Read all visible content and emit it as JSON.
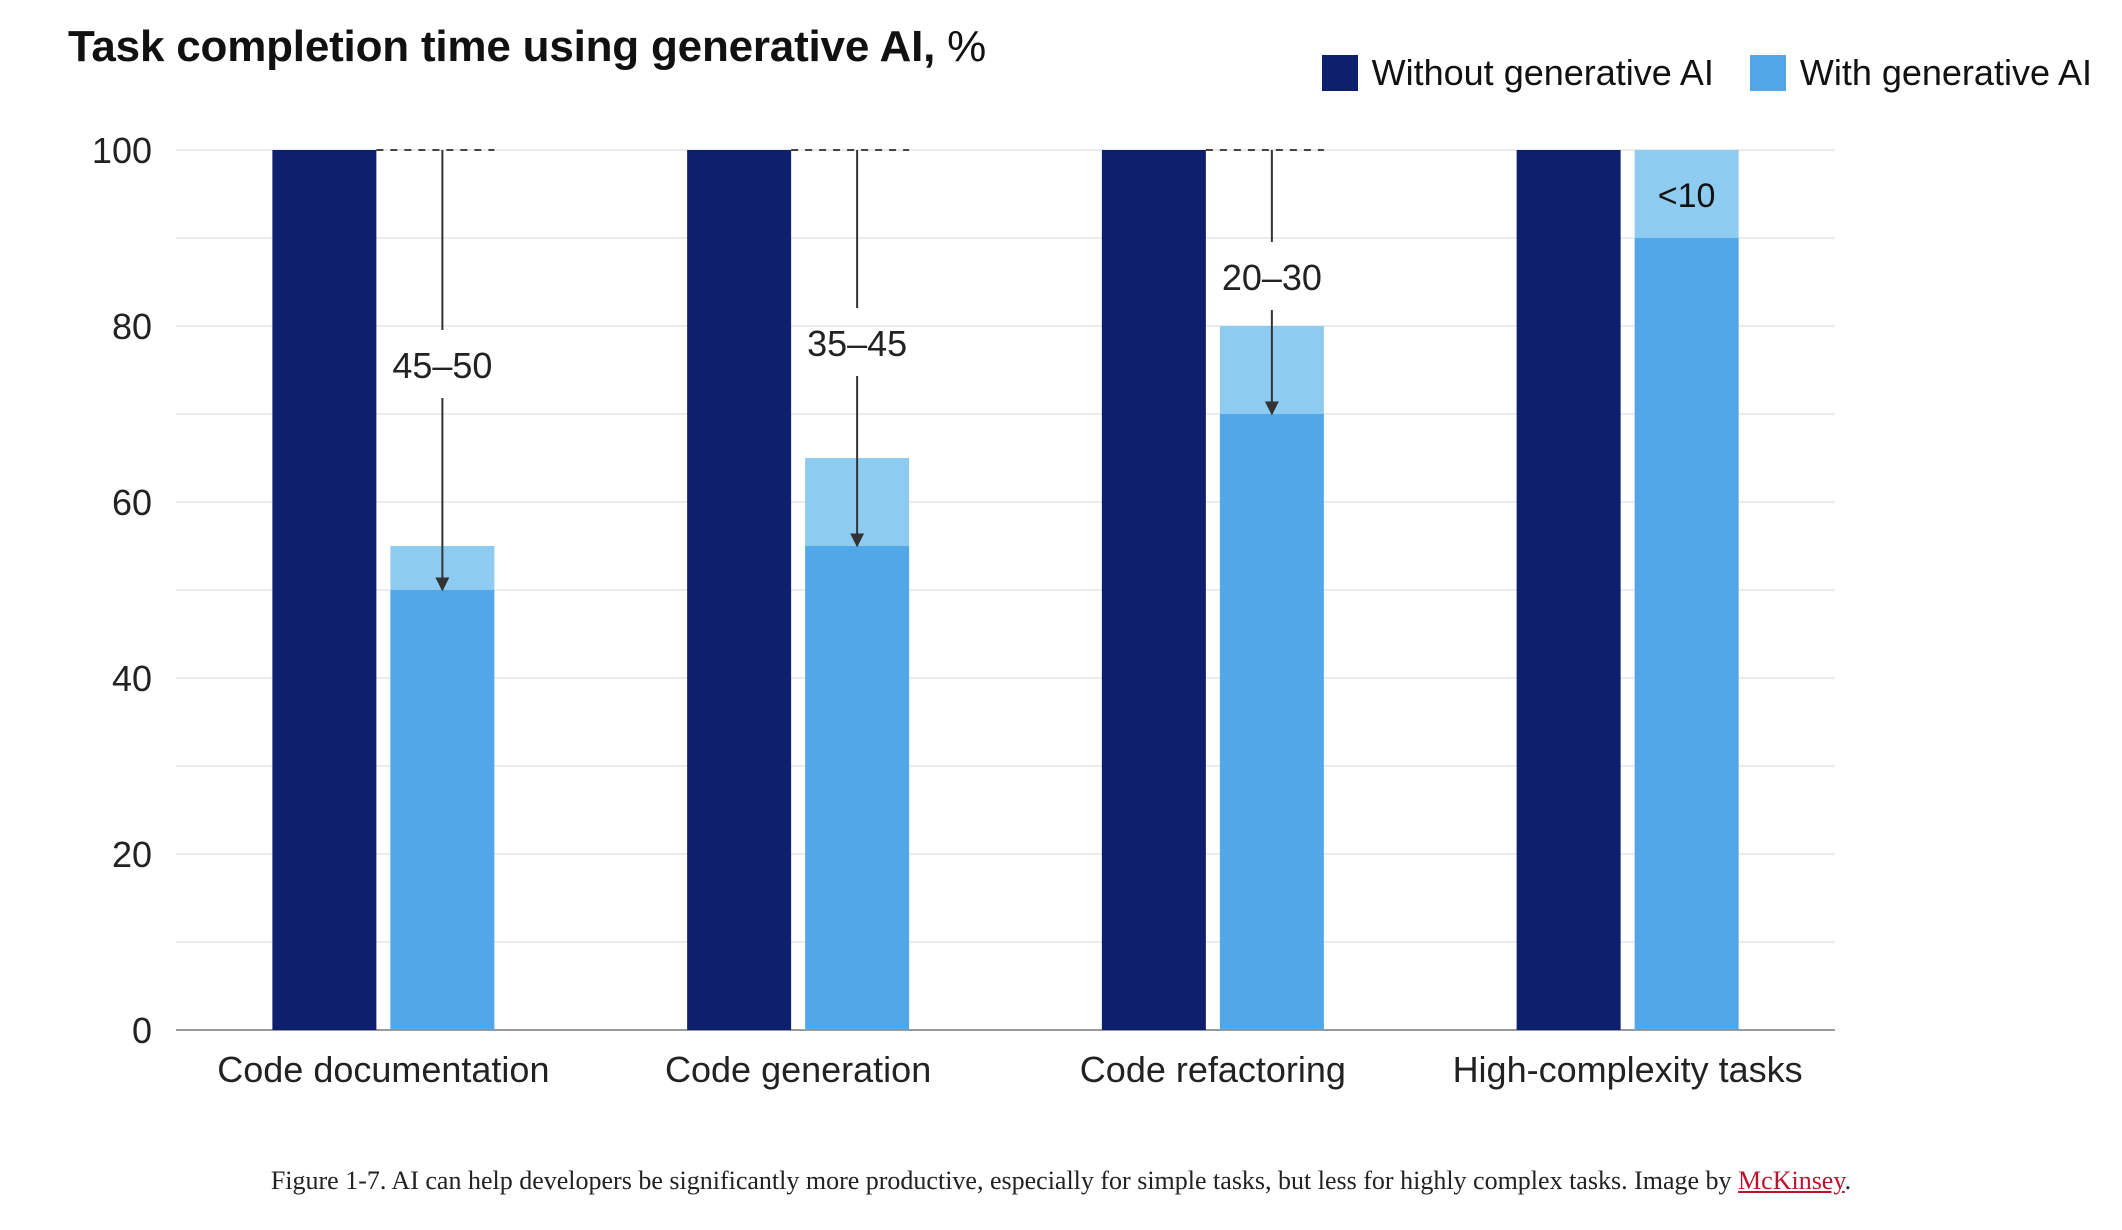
{
  "chart_data": {
    "type": "bar",
    "title": "Task completion time using generative AI,",
    "title_unit": "%",
    "categories": [
      "Code documentation",
      "Code generation",
      "Code refactoring",
      "High-complexity tasks"
    ],
    "ylim": [
      0,
      100
    ],
    "yticks": [
      0,
      20,
      40,
      60,
      80,
      100
    ],
    "grid": true,
    "legend_position": "top-right",
    "series": [
      {
        "name": "Without generative AI",
        "values": [
          100,
          100,
          100,
          100
        ],
        "color": "#0e1f6e"
      },
      {
        "name": "With generative AI",
        "values": [
          50,
          55,
          70,
          90
        ],
        "range_high": [
          55,
          65,
          80,
          100
        ],
        "color": "#52a7e8",
        "range_color": "#8ecbf1"
      }
    ],
    "annotations": [
      "45–50",
      "35–45",
      "20–30",
      "<10"
    ]
  },
  "caption": {
    "text": "Figure 1-7. AI can help developers be significantly more productive, especially for simple tasks, but less for highly complex tasks. Image by ",
    "link": "McKinsey",
    "end": "."
  }
}
